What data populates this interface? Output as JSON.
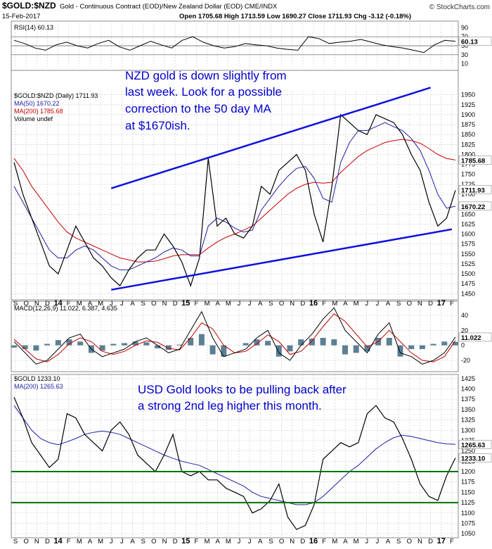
{
  "header": {
    "symbol": "$GOLD:$NZD",
    "description": "Gold - Continuous Contract (EOD)/New Zealand Dollar (EOD)  CME/INDX",
    "date": "15-Feb-2017",
    "watermark": "© StockCharts.com",
    "ohlc": "Open 1705.68  High 1713.59  Low 1690.27  Close 1711.93  Chg -3.12 (-0.18%)"
  },
  "x_axis_labels": [
    "S",
    "O",
    "N",
    "D",
    "14",
    "F",
    "M",
    "A",
    "M",
    "J",
    "J",
    "A",
    "S",
    "O",
    "N",
    "D",
    "15",
    "F",
    "M",
    "A",
    "M",
    "J",
    "J",
    "A",
    "S",
    "O",
    "N",
    "D",
    "16",
    "F",
    "M",
    "A",
    "M",
    "J",
    "J",
    "A",
    "S",
    "O",
    "N",
    "D",
    "17",
    "F"
  ],
  "x_axis_bold": [
    "14",
    "15",
    "16",
    "17"
  ],
  "colors": {
    "price": "#000000",
    "ma50": "#1f1fa8",
    "ma200": "#c80000",
    "trendline": "#1010dd",
    "support": "#007000",
    "annotation": "#0000cc",
    "grid": "#c8c8c8",
    "bear": "#c00000"
  },
  "annotations": {
    "nzd": [
      "NZD gold is down slightly from",
      "last week. Look for a possible",
      "correction to the 50 day MA",
      "at $1670ish."
    ],
    "usd": [
      "USD Gold looks to be pulling back after",
      "a strong 2nd leg higher this month."
    ]
  },
  "chart_data": [
    {
      "panel": "RSI",
      "type": "line",
      "title": "RSI(14) 60.13",
      "y_ticks": [
        90,
        70,
        50,
        30,
        10
      ],
      "ylim": [
        0,
        100
      ],
      "reference_lines": [
        70,
        50,
        30
      ],
      "last_value": "60.13",
      "series": [
        {
          "values": [
            62,
            55,
            45,
            40,
            52,
            58,
            50,
            45,
            55,
            62,
            48,
            40,
            50,
            60,
            52,
            45,
            62,
            70,
            58,
            50,
            45,
            48,
            55,
            52,
            50,
            45,
            42,
            40,
            70,
            66,
            55,
            58,
            60,
            64,
            58,
            52,
            48,
            45,
            40,
            35,
            52,
            62,
            60
          ]
        }
      ]
    },
    {
      "panel": "Price",
      "type": "line",
      "legend": [
        "$GOLD:$NZD (Daily) 1711.93",
        "MA(50) 1670.22",
        "MA(200) 1785.68",
        "Volume undef"
      ],
      "y_ticks": [
        1950,
        1925,
        1900,
        1875,
        1850,
        1825,
        1800,
        1775,
        1750,
        1725,
        1700,
        1675,
        1650,
        1625,
        1600,
        1575,
        1550,
        1525,
        1500,
        1475,
        1450
      ],
      "ylim": [
        1440,
        1960
      ],
      "price_label": "1711.93",
      "ma50_label": "1670.22",
      "ma200_label": "1785.68",
      "series": [
        {
          "name": "$GOLD:$NZD",
          "values": [
            1780,
            1700,
            1640,
            1580,
            1520,
            1500,
            1560,
            1620,
            1580,
            1540,
            1520,
            1490,
            1470,
            1510,
            1540,
            1560,
            1560,
            1600,
            1570,
            1530,
            1470,
            1540,
            1790,
            1620,
            1640,
            1600,
            1590,
            1620,
            1720,
            1700,
            1760,
            1780,
            1800,
            1760,
            1650,
            1580,
            1720,
            1900,
            1880,
            1860,
            1850,
            1900,
            1890,
            1880,
            1850,
            1800,
            1760,
            1680,
            1620,
            1640,
            1710
          ]
        },
        {
          "name": "MA(50)",
          "values": [
            1720,
            1680,
            1640,
            1600,
            1560,
            1540,
            1540,
            1560,
            1570,
            1560,
            1540,
            1520,
            1510,
            1510,
            1520,
            1530,
            1540,
            1555,
            1565,
            1560,
            1545,
            1545,
            1620,
            1640,
            1630,
            1615,
            1605,
            1610,
            1660,
            1690,
            1720,
            1745,
            1765,
            1770,
            1740,
            1690,
            1680,
            1780,
            1830,
            1860,
            1860,
            1870,
            1880,
            1870,
            1860,
            1840,
            1810,
            1760,
            1700,
            1665,
            1670
          ]
        },
        {
          "name": "MA(200)",
          "values": [
            1790,
            1760,
            1720,
            1690,
            1660,
            1630,
            1605,
            1590,
            1580,
            1570,
            1560,
            1550,
            1540,
            1535,
            1530,
            1530,
            1532,
            1538,
            1545,
            1548,
            1548,
            1548,
            1565,
            1580,
            1592,
            1600,
            1610,
            1620,
            1640,
            1660,
            1680,
            1700,
            1715,
            1725,
            1730,
            1728,
            1730,
            1755,
            1775,
            1795,
            1810,
            1820,
            1830,
            1835,
            1838,
            1835,
            1828,
            1815,
            1800,
            1790,
            1786
          ]
        }
      ],
      "trendlines": [
        {
          "from": [
            "2014-06",
            1715
          ],
          "to": [
            "2016-12",
            1968
          ]
        },
        {
          "from": [
            "2014-06",
            1460
          ],
          "to": [
            "2017-02",
            1612
          ]
        }
      ]
    },
    {
      "panel": "MACD",
      "type": "line",
      "title": "MACD(12,26,9) 11.022, 6.387, 4.635",
      "y_ticks": [
        40,
        20,
        0,
        -20
      ],
      "ylim": [
        -35,
        55
      ],
      "last_value": "11.022",
      "series": [
        {
          "name": "MACD",
          "values": [
            5,
            -10,
            -25,
            -20,
            -5,
            10,
            15,
            -5,
            -15,
            -10,
            -5,
            5,
            10,
            0,
            -10,
            -5,
            20,
            45,
            10,
            -15,
            -10,
            -5,
            10,
            20,
            -10,
            -20,
            0,
            15,
            35,
            50,
            20,
            5,
            -10,
            15,
            30,
            -10,
            -15,
            -25,
            -20,
            -10,
            11
          ]
        },
        {
          "name": "Signal",
          "values": [
            8,
            -5,
            -18,
            -22,
            -12,
            2,
            10,
            5,
            -8,
            -12,
            -8,
            0,
            6,
            4,
            -4,
            -6,
            10,
            30,
            22,
            0,
            -10,
            -8,
            2,
            14,
            5,
            -12,
            -8,
            6,
            25,
            42,
            32,
            15,
            -2,
            5,
            20,
            5,
            -10,
            -20,
            -22,
            -15,
            6.4
          ]
        },
        {
          "name": "Histogram",
          "values": [
            -3,
            -5,
            -7,
            2,
            7,
            8,
            5,
            -10,
            -7,
            2,
            3,
            5,
            4,
            -4,
            -6,
            1,
            10,
            15,
            -12,
            -15,
            0,
            3,
            8,
            6,
            -15,
            -8,
            8,
            9,
            10,
            8,
            -12,
            -10,
            -8,
            10,
            10,
            -15,
            -5,
            -5,
            2,
            5,
            4.6
          ]
        }
      ]
    },
    {
      "panel": "USD Gold",
      "type": "line",
      "legend": [
        "$GOLD 1233.10",
        "MA(200) 1265.63"
      ],
      "y_ticks": [
        1425,
        1400,
        1375,
        1350,
        1325,
        1300,
        1275,
        1250,
        1225,
        1200,
        1175,
        1150,
        1125,
        1100,
        1075,
        1050
      ],
      "ylim": [
        1040,
        1435
      ],
      "price_label": "1233.10",
      "ma200_label": "1265.63",
      "support_lines": [
        1200,
        1125
      ],
      "series": [
        {
          "name": "$GOLD",
          "values": [
            1380,
            1330,
            1270,
            1240,
            1210,
            1230,
            1340,
            1330,
            1290,
            1270,
            1250,
            1300,
            1320,
            1290,
            1240,
            1220,
            1200,
            1240,
            1290,
            1200,
            1190,
            1200,
            1180,
            1180,
            1160,
            1150,
            1140,
            1100,
            1110,
            1130,
            1170,
            1090,
            1060,
            1070,
            1120,
            1230,
            1250,
            1270,
            1260,
            1270,
            1340,
            1360,
            1330,
            1320,
            1280,
            1230,
            1170,
            1140,
            1130,
            1190,
            1233
          ]
        },
        {
          "name": "MA(200)",
          "values": [
            1360,
            1330,
            1300,
            1280,
            1270,
            1265,
            1272,
            1280,
            1290,
            1295,
            1298,
            1295,
            1290,
            1280,
            1270,
            1260,
            1250,
            1240,
            1232,
            1225,
            1220,
            1215,
            1205,
            1195,
            1185,
            1175,
            1165,
            1150,
            1140,
            1135,
            1130,
            1125,
            1120,
            1120,
            1125,
            1140,
            1160,
            1180,
            1200,
            1215,
            1235,
            1255,
            1270,
            1282,
            1288,
            1285,
            1280,
            1275,
            1270,
            1267,
            1266
          ]
        }
      ]
    }
  ]
}
